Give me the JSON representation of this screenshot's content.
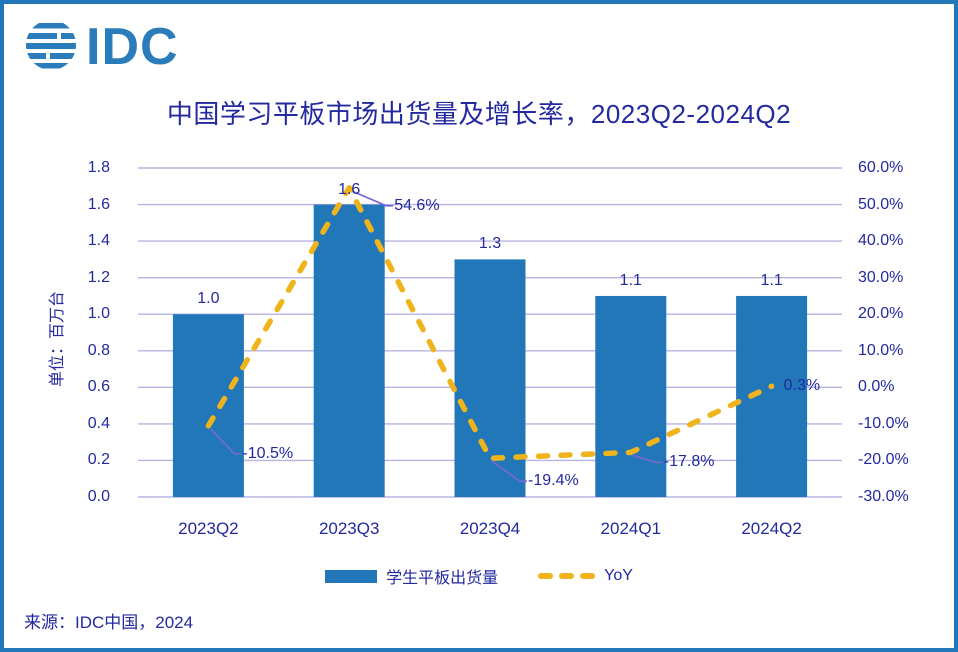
{
  "logo": {
    "text": "IDC"
  },
  "title": {
    "text": "中国学习平板市场出货量及增长率，2023Q2-2024Q2"
  },
  "chart_data": {
    "type": "bar",
    "title": "中国学习平板市场出货量及增长率，2023Q2-2024Q2",
    "categories": [
      "2023Q2",
      "2023Q3",
      "2023Q4",
      "2024Q1",
      "2024Q2"
    ],
    "series": [
      {
        "name": "学生平板出货量",
        "type": "bar",
        "axis": "left",
        "unit": "百万台",
        "values": [
          1.0,
          1.6,
          1.3,
          1.1,
          1.1
        ],
        "labels": [
          "1.0",
          "1.6",
          "1.3",
          "1.1",
          "1.1"
        ],
        "color": "#2177B8"
      },
      {
        "name": "YoY",
        "type": "line",
        "axis": "right",
        "unit": "%",
        "values": [
          -10.5,
          54.6,
          -19.4,
          -17.8,
          0.3
        ],
        "labels": [
          "-10.5%",
          "54.6%",
          "-19.4%",
          "-17.8%",
          "0.3%"
        ],
        "color": "#EFB41C",
        "dashed": true
      }
    ],
    "left_axis": {
      "title": "单位：百万台",
      "min": 0.0,
      "max": 1.8,
      "step": 0.2,
      "tick_labels": [
        "1.8",
        "1.6",
        "1.4",
        "1.2",
        "1.0",
        "0.8",
        "0.6",
        "0.4",
        "0.2",
        "0.0"
      ]
    },
    "right_axis": {
      "min": -30.0,
      "max": 60.0,
      "step": 10.0,
      "tick_labels": [
        "60.0%",
        "50.0%",
        "40.0%",
        "30.0%",
        "20.0%",
        "10.0%",
        "0.0%",
        "-10.0%",
        "-20.0%",
        "-30.0%"
      ]
    },
    "grid": "horizontal",
    "legend_position": "bottom"
  },
  "source": {
    "text": "来源：IDC中国，2024"
  },
  "colors": {
    "accent_blue": "#2177B8",
    "gold": "#EFB41C",
    "navy_text": "#23299E",
    "gridline": "#B8B4E2",
    "leader_line": "#7668D2",
    "frame": "#2177B8"
  }
}
